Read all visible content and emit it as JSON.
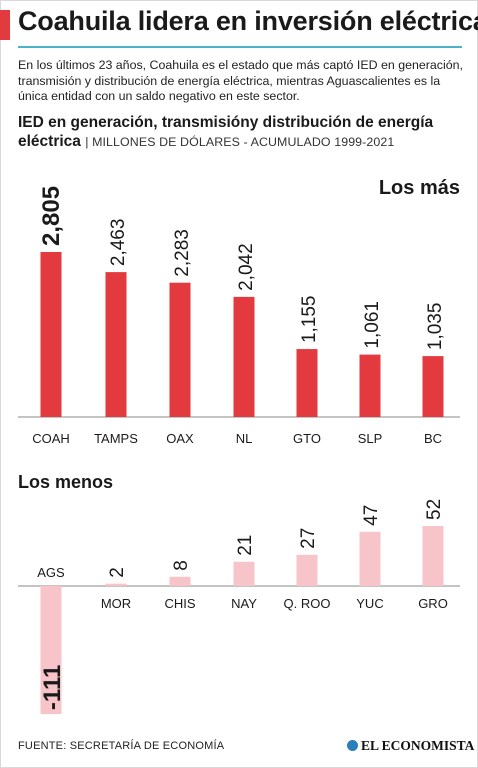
{
  "header": {
    "title": "Coahuila lidera en inversión eléctrica",
    "intro": "En los últimos 23 años, Coahuila es el estado que más captó IED en generación, transmisión y distribución de energía eléctrica, mientras Aguascalientes es la única entidad con un saldo negativo en este sector."
  },
  "chart_header": {
    "title": "IED en generación, transmisióny distribución de energía eléctrica",
    "subtitle": "| MILLONES DE DÓLARES - ACUMULADO 1999-2021"
  },
  "chart_data": [
    {
      "type": "bar",
      "title": "Los más",
      "categories": [
        "COAH",
        "TAMPS",
        "OAX",
        "NL",
        "GTO",
        "SLP",
        "BC"
      ],
      "values": [
        2805,
        2463,
        2283,
        2042,
        1155,
        1061,
        1035
      ],
      "value_labels": [
        "2,805",
        "2,463",
        "2,283",
        "2,042",
        "1,155",
        "1,061",
        "1,035"
      ],
      "ylim": [
        0,
        3000
      ],
      "grid": false,
      "color": "#e23a3e"
    },
    {
      "type": "bar",
      "title": "Los menos",
      "categories": [
        "AGS",
        "MOR",
        "CHIS",
        "NAY",
        "Q. ROO",
        "YUC",
        "GRO"
      ],
      "values": [
        -111,
        2,
        8,
        21,
        27,
        47,
        52
      ],
      "value_labels": [
        "-111",
        "2",
        "8",
        "21",
        "27",
        "47",
        "52"
      ],
      "grid": false,
      "color": "#f6c4c9"
    }
  ],
  "footer": {
    "source": "FUENTE: SECRETARÍA DE ECONOMÍA",
    "brand": "EL ECONOMISTA",
    "brand_icon": "el-economista-logo-icon"
  }
}
